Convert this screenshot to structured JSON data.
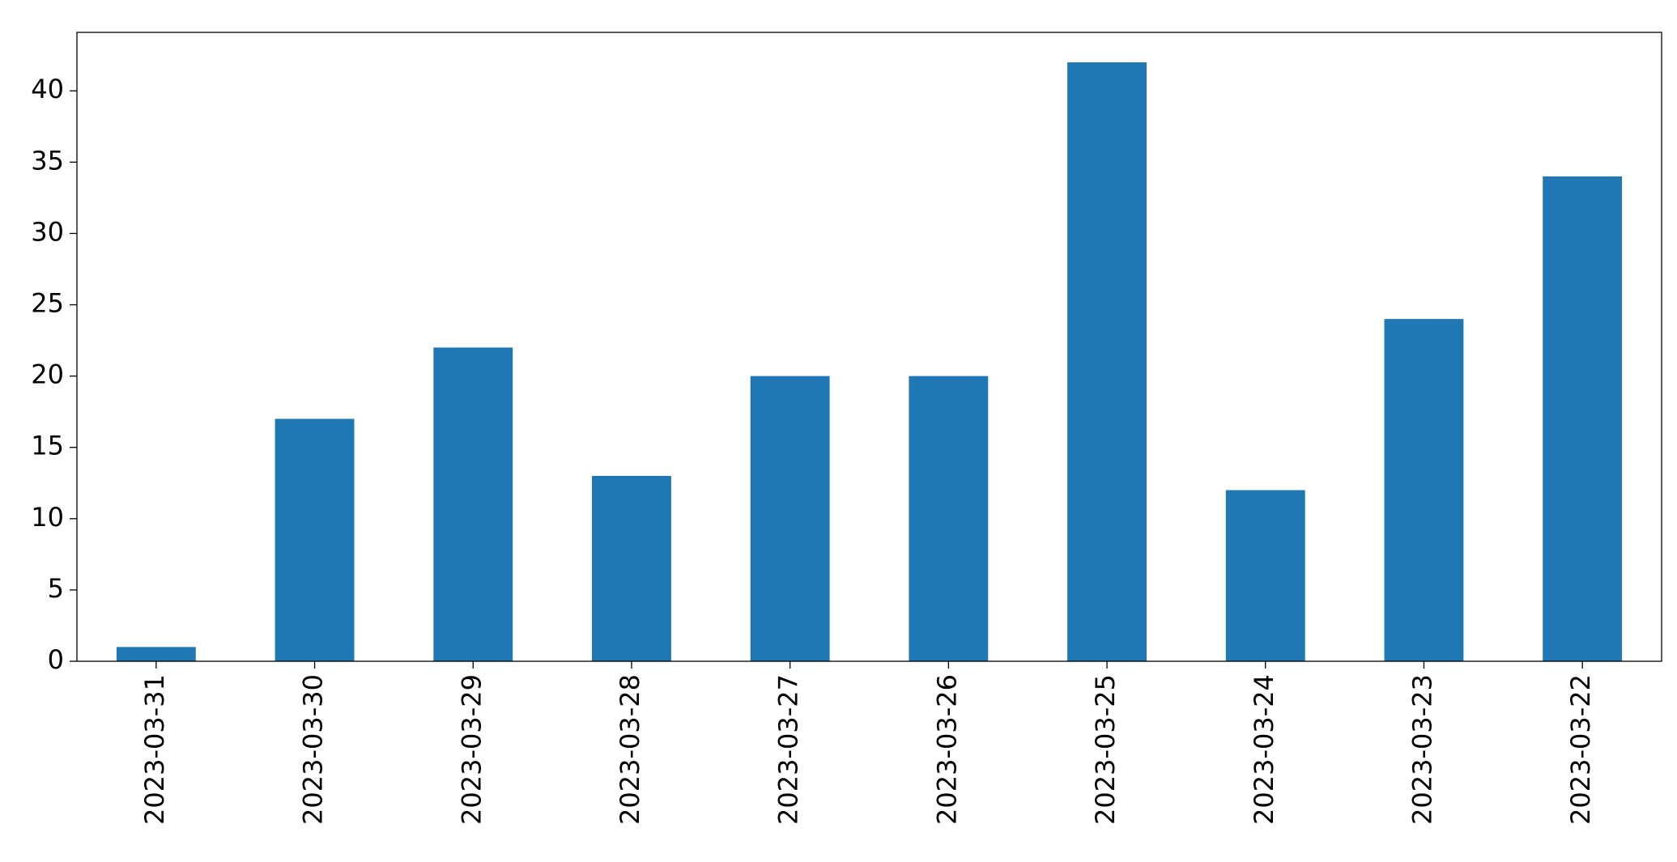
{
  "chart_data": {
    "type": "bar",
    "categories": [
      "2023-03-31",
      "2023-03-30",
      "2023-03-29",
      "2023-03-28",
      "2023-03-27",
      "2023-03-26",
      "2023-03-25",
      "2023-03-24",
      "2023-03-23",
      "2023-03-22"
    ],
    "values": [
      1,
      17,
      22,
      13,
      20,
      20,
      42,
      12,
      24,
      34
    ],
    "color": "#1f77b4",
    "ylim": [
      0,
      44.1
    ],
    "yticks": [
      0,
      5,
      10,
      15,
      20,
      25,
      30,
      35,
      40
    ],
    "grid": false
  }
}
